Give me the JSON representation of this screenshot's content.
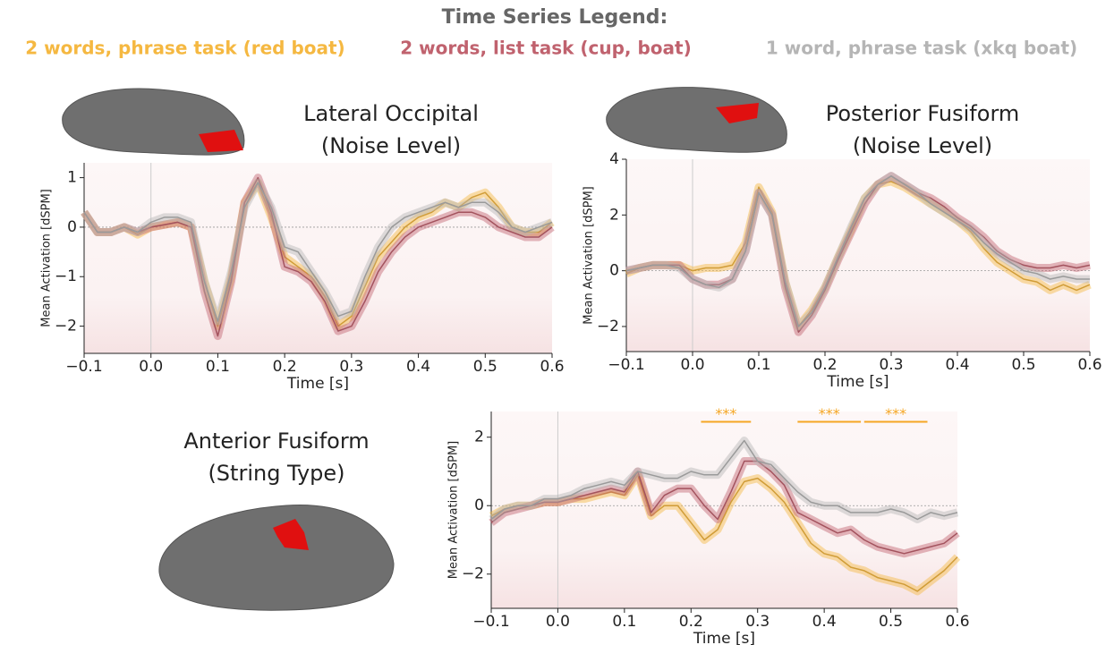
{
  "legend": {
    "title": "Time Series Legend:",
    "items": [
      {
        "name": "2 words, phrase task (red boat)",
        "color": "#f5b841"
      },
      {
        "name": "2 words, list task (cup, boat)",
        "color": "#c0626e"
      },
      {
        "name": "1 word, phrase task (xkq boat)",
        "color": "#b5b5b5"
      }
    ]
  },
  "chart_data": [
    {
      "type": "line",
      "title": "Lateral Occipital",
      "subtitle": "(Noise Level)",
      "xlabel": "Time [s]",
      "ylabel": "Mean Activation [dSPM]",
      "x": [
        -0.1,
        -0.08,
        -0.06,
        -0.04,
        -0.02,
        0,
        0.02,
        0.04,
        0.06,
        0.08,
        0.1,
        0.12,
        0.14,
        0.16,
        0.18,
        0.2,
        0.22,
        0.24,
        0.26,
        0.28,
        0.3,
        0.32,
        0.34,
        0.36,
        0.38,
        0.4,
        0.42,
        0.44,
        0.46,
        0.48,
        0.5,
        0.52,
        0.54,
        0.56,
        0.58,
        0.6
      ],
      "series": [
        {
          "color": "#f5b841",
          "values": [
            0.3,
            -0.1,
            -0.1,
            0,
            -0.15,
            0,
            0.05,
            0.1,
            0,
            -1.1,
            -2.0,
            -1.0,
            0.5,
            0.9,
            0.2,
            -0.6,
            -0.8,
            -1.0,
            -1.4,
            -2.0,
            -1.8,
            -1.2,
            -0.6,
            -0.3,
            0,
            0.2,
            0.3,
            0.5,
            0.4,
            0.6,
            0.7,
            0.4,
            0,
            -0.1,
            -0.1,
            0.1
          ]
        },
        {
          "color": "#c0626e",
          "values": [
            0.3,
            -0.1,
            -0.1,
            0,
            -0.1,
            0,
            0.05,
            0.1,
            0,
            -1.3,
            -2.2,
            -1.1,
            0.5,
            1.0,
            0.3,
            -0.8,
            -0.9,
            -1.1,
            -1.5,
            -2.1,
            -2.0,
            -1.5,
            -0.9,
            -0.5,
            -0.2,
            0,
            0.1,
            0.2,
            0.3,
            0.3,
            0.2,
            0,
            -0.1,
            -0.2,
            -0.2,
            0
          ]
        },
        {
          "color": "#b5b5b5",
          "values": [
            0.3,
            -0.1,
            -0.1,
            0,
            -0.1,
            0.1,
            0.2,
            0.2,
            0.1,
            -1.1,
            -1.9,
            -0.9,
            0.4,
            0.9,
            0.4,
            -0.4,
            -0.5,
            -0.9,
            -1.3,
            -1.8,
            -1.7,
            -1.0,
            -0.4,
            0,
            0.2,
            0.3,
            0.4,
            0.5,
            0.4,
            0.5,
            0.5,
            0.3,
            0,
            -0.1,
            0,
            0.1
          ]
        }
      ],
      "xlim": [
        -0.1,
        0.6
      ],
      "ylim": [
        -2.55,
        1.3
      ],
      "xticks": [
        {
          "value": -0.1,
          "label": "−0.1"
        },
        {
          "value": 0,
          "label": "0.0"
        },
        0.1,
        0.2,
        0.3,
        0.4,
        0.5,
        0.6
      ],
      "yticks": [
        {
          "value": -2,
          "label": "−2"
        },
        {
          "value": -1,
          "label": "−1"
        },
        0,
        1
      ]
    },
    {
      "type": "line",
      "title": "Posterior Fusiform",
      "subtitle": "(Noise Level)",
      "xlabel": "Time [s]",
      "ylabel": "Mean Activation [dSPM]",
      "x": [
        -0.1,
        -0.08,
        -0.06,
        -0.04,
        -0.02,
        0,
        0.02,
        0.04,
        0.06,
        0.08,
        0.1,
        0.12,
        0.14,
        0.16,
        0.18,
        0.2,
        0.22,
        0.24,
        0.26,
        0.28,
        0.3,
        0.32,
        0.34,
        0.36,
        0.38,
        0.4,
        0.42,
        0.44,
        0.46,
        0.48,
        0.5,
        0.52,
        0.54,
        0.56,
        0.58,
        0.6
      ],
      "series": [
        {
          "color": "#f5b841",
          "values": [
            -0.1,
            0.1,
            0.2,
            0.2,
            0.2,
            0,
            0.1,
            0.1,
            0.2,
            1.0,
            3.0,
            2.1,
            -0.4,
            -2.0,
            -1.4,
            -0.6,
            0.5,
            1.5,
            2.6,
            3.1,
            3.2,
            3.0,
            2.7,
            2.4,
            2.1,
            1.8,
            1.4,
            0.8,
            0.3,
            0,
            -0.3,
            -0.4,
            -0.7,
            -0.5,
            -0.7,
            -0.5
          ]
        },
        {
          "color": "#c0626e",
          "values": [
            0,
            0.1,
            0.2,
            0.2,
            0.2,
            -0.3,
            -0.5,
            -0.5,
            -0.3,
            0.7,
            2.8,
            2.0,
            -0.6,
            -2.2,
            -1.6,
            -0.7,
            0.4,
            1.4,
            2.4,
            3.1,
            3.4,
            3.1,
            2.8,
            2.6,
            2.3,
            1.9,
            1.6,
            1.2,
            0.7,
            0.4,
            0.2,
            0.1,
            0.1,
            0.2,
            0.1,
            0.2
          ]
        },
        {
          "color": "#b5b5b5",
          "values": [
            0,
            0.1,
            0.2,
            0.2,
            0.1,
            -0.3,
            -0.5,
            -0.6,
            -0.3,
            0.7,
            2.8,
            2.0,
            -0.4,
            -2.0,
            -1.5,
            -0.6,
            0.5,
            1.6,
            2.6,
            3.1,
            3.4,
            3.1,
            2.8,
            2.4,
            2.1,
            1.8,
            1.5,
            1.0,
            0.6,
            0.3,
            0,
            -0.1,
            -0.3,
            -0.2,
            -0.3,
            -0.3
          ]
        }
      ],
      "xlim": [
        -0.1,
        0.6
      ],
      "ylim": [
        -2.9,
        4.0
      ],
      "xticks": [
        {
          "value": -0.1,
          "label": "−0.1"
        },
        {
          "value": 0,
          "label": "0.0"
        },
        0.1,
        0.2,
        0.3,
        0.4,
        0.5,
        0.6
      ],
      "yticks": [
        {
          "value": -2,
          "label": "−2"
        },
        0,
        2,
        4
      ]
    },
    {
      "type": "line",
      "title": "Anterior Fusiform",
      "subtitle": "(String Type)",
      "xlabel": "Time [s]",
      "ylabel": "Mean Activation [dSPM]",
      "x": [
        -0.1,
        -0.08,
        -0.06,
        -0.04,
        -0.02,
        0,
        0.02,
        0.04,
        0.06,
        0.08,
        0.1,
        0.12,
        0.14,
        0.16,
        0.18,
        0.2,
        0.22,
        0.24,
        0.26,
        0.28,
        0.3,
        0.32,
        0.34,
        0.36,
        0.38,
        0.4,
        0.42,
        0.44,
        0.46,
        0.48,
        0.5,
        0.52,
        0.54,
        0.56,
        0.58,
        0.6
      ],
      "series": [
        {
          "color": "#f5b841",
          "values": [
            -0.3,
            -0.1,
            0,
            0,
            0.1,
            0.1,
            0.2,
            0.2,
            0.3,
            0.4,
            0.3,
            0.9,
            -0.3,
            0,
            0,
            -0.5,
            -1.0,
            -0.7,
            0.1,
            0.7,
            0.8,
            0.5,
            0.1,
            -0.5,
            -1.1,
            -1.4,
            -1.5,
            -1.8,
            -1.9,
            -2.1,
            -2.2,
            -2.3,
            -2.5,
            -2.2,
            -1.9,
            -1.5
          ]
        },
        {
          "color": "#c0626e",
          "values": [
            -0.5,
            -0.2,
            -0.1,
            0,
            0.1,
            0.1,
            0.2,
            0.3,
            0.4,
            0.5,
            0.4,
            1.0,
            -0.2,
            0.3,
            0.5,
            0.5,
            0,
            -0.4,
            0.4,
            1.3,
            1.3,
            1.0,
            0.6,
            -0.2,
            -0.4,
            -0.6,
            -0.8,
            -0.7,
            -1.0,
            -1.2,
            -1.3,
            -1.4,
            -1.3,
            -1.2,
            -1.1,
            -0.8
          ]
        },
        {
          "color": "#b5b5b5",
          "values": [
            -0.4,
            -0.1,
            0,
            0,
            0.2,
            0.2,
            0.3,
            0.5,
            0.6,
            0.7,
            0.6,
            1.0,
            0.9,
            0.8,
            0.8,
            1.0,
            0.9,
            0.9,
            1.4,
            1.9,
            1.3,
            1.2,
            0.8,
            0.4,
            0.1,
            0,
            0,
            -0.2,
            -0.2,
            -0.2,
            -0.1,
            -0.2,
            -0.4,
            -0.2,
            -0.3,
            -0.2
          ]
        }
      ],
      "xlim": [
        -0.1,
        0.6
      ],
      "ylim": [
        -3.0,
        2.75
      ],
      "xticks": [
        {
          "value": -0.1,
          "label": "−0.1"
        },
        {
          "value": 0,
          "label": "0.0"
        },
        0.1,
        0.2,
        0.3,
        0.4,
        0.5,
        0.6
      ],
      "yticks": [
        {
          "value": -2,
          "label": "−2"
        },
        0,
        2
      ],
      "annotations": [
        {
          "text": "***",
          "x": [
            0.215,
            0.29
          ],
          "y": 2.45,
          "color": "#f5a623"
        },
        {
          "text": "***",
          "x": [
            0.36,
            0.455
          ],
          "y": 2.45,
          "color": "#f5a623"
        },
        {
          "text": "***",
          "x": [
            0.46,
            0.555
          ],
          "y": 2.45,
          "color": "#f5a623"
        }
      ]
    }
  ]
}
